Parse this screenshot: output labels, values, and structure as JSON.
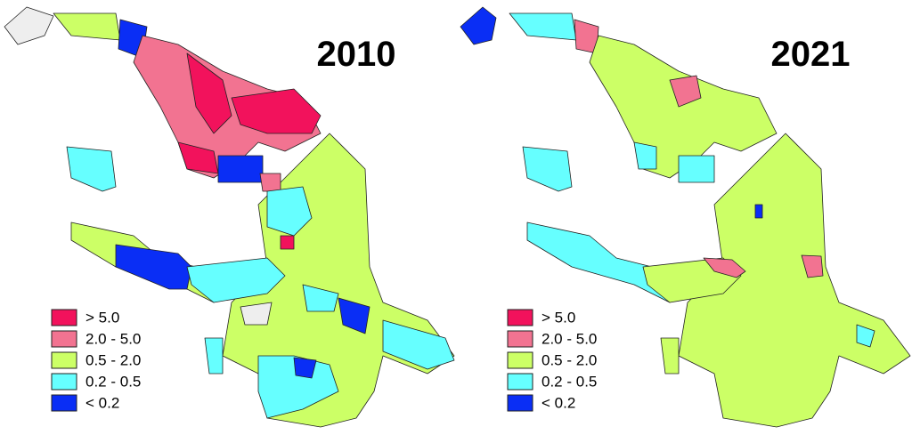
{
  "panels": [
    {
      "title": "2010",
      "legend": [
        {
          "label": "> 5.0",
          "color": "#f2125c"
        },
        {
          "label": "2.0 - 5.0",
          "color": "#f27391"
        },
        {
          "label": "0.5 - 2.0",
          "color": "#ccff66"
        },
        {
          "label": "0.2 - 0.5",
          "color": "#66ffff"
        },
        {
          "label": "< 0.2",
          "color": "#0a2ef5"
        }
      ]
    },
    {
      "title": "2021",
      "legend": [
        {
          "label": "> 5.0",
          "color": "#f2125c"
        },
        {
          "label": "2.0 - 5.0",
          "color": "#f27391"
        },
        {
          "label": "0.5 - 2.0",
          "color": "#ccff66"
        },
        {
          "label": "0.2 - 0.5",
          "color": "#66ffff"
        },
        {
          "label": "< 0.2",
          "color": "#0a2ef5"
        }
      ]
    }
  ]
}
